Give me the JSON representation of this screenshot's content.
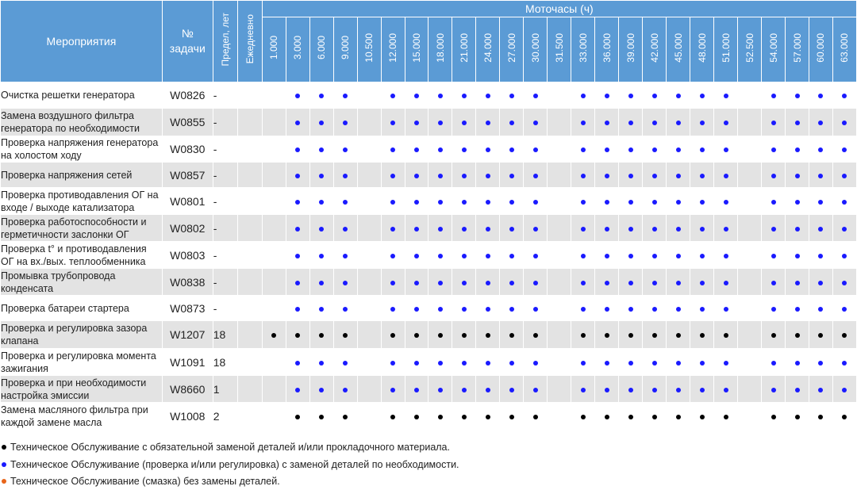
{
  "header": {
    "events": "Мероприятия",
    "task": "№ задачи",
    "limit": "Предел, лет",
    "daily": "Ежедневно",
    "motohours": "Моточасы (ч)"
  },
  "hours": [
    "1.000",
    "3.000",
    "6.000",
    "9.000",
    "10.500",
    "12.000",
    "15.000",
    "18.000",
    "21.000",
    "24.000",
    "27.000",
    "30.000",
    "31.500",
    "33.000",
    "36.000",
    "39.000",
    "42.000",
    "45.000",
    "48.000",
    "51.000",
    "52.500",
    "54.000",
    "57.000",
    "60.000",
    "63.000"
  ],
  "rows": [
    {
      "name": "Очистка решетки генератора",
      "task": "W0826",
      "limit": "-",
      "color": "blue",
      "marks": [
        0,
        1,
        1,
        1,
        0,
        1,
        1,
        1,
        1,
        1,
        1,
        1,
        0,
        1,
        1,
        1,
        1,
        1,
        1,
        1,
        0,
        1,
        1,
        1,
        1
      ]
    },
    {
      "name": "Замена воздушного фильтра генератора по необходимости",
      "task": "W0855",
      "limit": "-",
      "color": "blue",
      "marks": [
        0,
        1,
        1,
        1,
        0,
        1,
        1,
        1,
        1,
        1,
        1,
        1,
        0,
        1,
        1,
        1,
        1,
        1,
        1,
        1,
        0,
        1,
        1,
        1,
        1
      ]
    },
    {
      "name": "Проверка напряжения генератора на холостом ходу",
      "task": "W0830",
      "limit": "-",
      "color": "blue",
      "marks": [
        0,
        1,
        1,
        1,
        0,
        1,
        1,
        1,
        1,
        1,
        1,
        1,
        0,
        1,
        1,
        1,
        1,
        1,
        1,
        1,
        0,
        1,
        1,
        1,
        1
      ]
    },
    {
      "name": "Проверка напряжения сетей",
      "task": "W0857",
      "limit": "-",
      "color": "blue",
      "marks": [
        0,
        1,
        1,
        1,
        0,
        1,
        1,
        1,
        1,
        1,
        1,
        1,
        0,
        1,
        1,
        1,
        1,
        1,
        1,
        1,
        0,
        1,
        1,
        1,
        1
      ]
    },
    {
      "name": "Проверка противодавления ОГ на входе / выходе катализатора",
      "task": "W0801",
      "limit": "-",
      "color": "blue",
      "marks": [
        0,
        1,
        1,
        1,
        0,
        1,
        1,
        1,
        1,
        1,
        1,
        1,
        0,
        1,
        1,
        1,
        1,
        1,
        1,
        1,
        0,
        1,
        1,
        1,
        1
      ]
    },
    {
      "name": "Проверка работоспособности и герметичности заслонки ОГ",
      "task": "W0802",
      "limit": "-",
      "color": "blue",
      "marks": [
        0,
        1,
        1,
        1,
        0,
        1,
        1,
        1,
        1,
        1,
        1,
        1,
        0,
        1,
        1,
        1,
        1,
        1,
        1,
        1,
        0,
        1,
        1,
        1,
        1
      ]
    },
    {
      "name": "Проверка t° и противодавления ОГ на вх./вых. теплообменника",
      "task": "W0803",
      "limit": "-",
      "color": "blue",
      "marks": [
        0,
        1,
        1,
        1,
        0,
        1,
        1,
        1,
        1,
        1,
        1,
        1,
        0,
        1,
        1,
        1,
        1,
        1,
        1,
        1,
        0,
        1,
        1,
        1,
        1
      ]
    },
    {
      "name": "Промывка трубопровода конденсата",
      "task": "W0838",
      "limit": "-",
      "color": "blue",
      "marks": [
        0,
        1,
        1,
        1,
        0,
        1,
        1,
        1,
        1,
        1,
        1,
        1,
        0,
        1,
        1,
        1,
        1,
        1,
        1,
        1,
        0,
        1,
        1,
        1,
        1
      ]
    },
    {
      "name": "Проверка батареи стартера",
      "task": "W0873",
      "limit": "-",
      "color": "blue",
      "marks": [
        0,
        1,
        1,
        1,
        0,
        1,
        1,
        1,
        1,
        1,
        1,
        1,
        0,
        1,
        1,
        1,
        1,
        1,
        1,
        1,
        0,
        1,
        1,
        1,
        1
      ]
    },
    {
      "name": "Проверка и регулировка зазора клапана",
      "task": "W1207",
      "limit": "18",
      "color": "black",
      "marks": [
        1,
        1,
        1,
        1,
        0,
        1,
        1,
        1,
        1,
        1,
        1,
        1,
        0,
        1,
        1,
        1,
        1,
        1,
        1,
        1,
        0,
        1,
        1,
        1,
        1
      ]
    },
    {
      "name": "Проверка и регулировка момента зажигания",
      "task": "W1091",
      "limit": "18",
      "color": "blue",
      "marks": [
        0,
        1,
        1,
        1,
        0,
        1,
        1,
        1,
        1,
        1,
        1,
        1,
        0,
        1,
        1,
        1,
        1,
        1,
        1,
        1,
        0,
        1,
        1,
        1,
        1
      ]
    },
    {
      "name": "Проверка и при необходимости настройка эмиссии",
      "task": "W8660",
      "limit": "1",
      "color": "blue",
      "marks": [
        0,
        1,
        1,
        1,
        0,
        1,
        1,
        1,
        1,
        1,
        1,
        1,
        0,
        1,
        1,
        1,
        1,
        1,
        1,
        1,
        0,
        1,
        1,
        1,
        1
      ]
    },
    {
      "name": "Замена масляного фильтра при каждой замене масла",
      "task": "W1008",
      "limit": "2",
      "color": "black",
      "marks": [
        0,
        1,
        1,
        1,
        0,
        1,
        1,
        1,
        1,
        1,
        1,
        1,
        0,
        1,
        1,
        1,
        1,
        1,
        1,
        1,
        0,
        1,
        1,
        1,
        1
      ]
    }
  ],
  "legend": [
    {
      "color": "black",
      "text": "Техническое Обслуживание с обязательной заменой деталей и/или прокладочного материала."
    },
    {
      "color": "blue",
      "text": "Техническое Обслуживание (проверка и/или регулировка) с заменой деталей по необходимости."
    },
    {
      "color": "orange",
      "text": "Техническое Обслуживание (смазка) без замены деталей."
    }
  ]
}
